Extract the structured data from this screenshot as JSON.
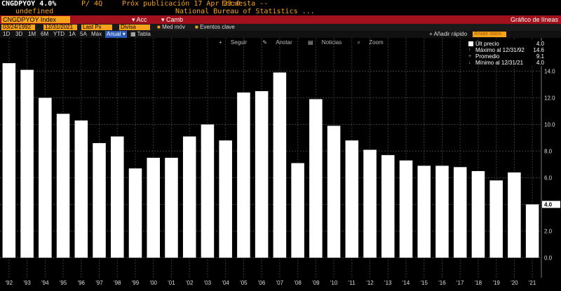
{
  "header": {
    "ticker": "CNGDPYOY",
    "last_value": "4.0%",
    "period": "P/ 4Q",
    "release": "Próx publicación 17 Apr 23:0",
    "survey": "Encuesta --",
    "undefined_label": "undefined",
    "source": "National Bureau of Statistics ..."
  },
  "redbar": {
    "security": "CNGDPYOY Index",
    "acc_label": "Acc",
    "camb_label": "Camb",
    "title": "Gráfico de líneas"
  },
  "controls": {
    "start_date": "03/24/1992",
    "end_date": "12/31/2021",
    "last_px": "Last Px",
    "currency": "Divisa local",
    "moving_avg": "Med móv",
    "key_events": "Eventos clave"
  },
  "timebar": {
    "ranges": [
      "1D",
      "3D",
      "1M",
      "6M",
      "YTD",
      "1A",
      "5A",
      "Máx"
    ],
    "frequency": "Anual",
    "table": "Tabla",
    "quick_add": "+ Añadir rápido",
    "add_data_placeholder": "Añadir datos"
  },
  "chart_toolbar": {
    "follow": "Seguir",
    "annotate": "Anotar",
    "news": "Noticias",
    "zoom": "Zoom"
  },
  "legend": {
    "last_label": "Últ precio",
    "last_value": "4.0",
    "max_label": "Máximo al 12/31/92",
    "max_value": "14.6",
    "avg_label": "Promedio",
    "avg_value": "9.1",
    "min_label": "Mínimo al 12/31/21",
    "min_value": "4.0",
    "color": "#ffffff"
  },
  "chart_data": {
    "type": "bar",
    "categories": [
      "'92",
      "'93",
      "'94",
      "'95",
      "'96",
      "'97",
      "'98",
      "'99",
      "'00",
      "'01",
      "'02",
      "'03",
      "'04",
      "'05",
      "'06",
      "'07",
      "'08",
      "'09",
      "'10",
      "'11",
      "'12",
      "'13",
      "'14",
      "'15",
      "'16",
      "'17",
      "'18",
      "'19",
      "'20",
      "'21"
    ],
    "values": [
      14.6,
      14.1,
      12.0,
      10.8,
      10.3,
      8.6,
      9.1,
      6.7,
      7.5,
      7.5,
      9.1,
      10.0,
      8.8,
      12.4,
      12.5,
      13.9,
      7.1,
      11.9,
      9.9,
      8.8,
      8.1,
      7.7,
      7.3,
      6.9,
      6.9,
      6.8,
      6.5,
      5.8,
      6.4,
      4.0
    ],
    "yticks": [
      "0.0",
      "2.0",
      "4.0",
      "6.0",
      "8.0",
      "10.0",
      "12.0",
      "14.0"
    ],
    "ylim": [
      -1.5,
      16.5
    ],
    "last_marker": "4.0",
    "grid": true,
    "bar_color": "#ffffff",
    "grid_color": "#3a3a3a"
  }
}
